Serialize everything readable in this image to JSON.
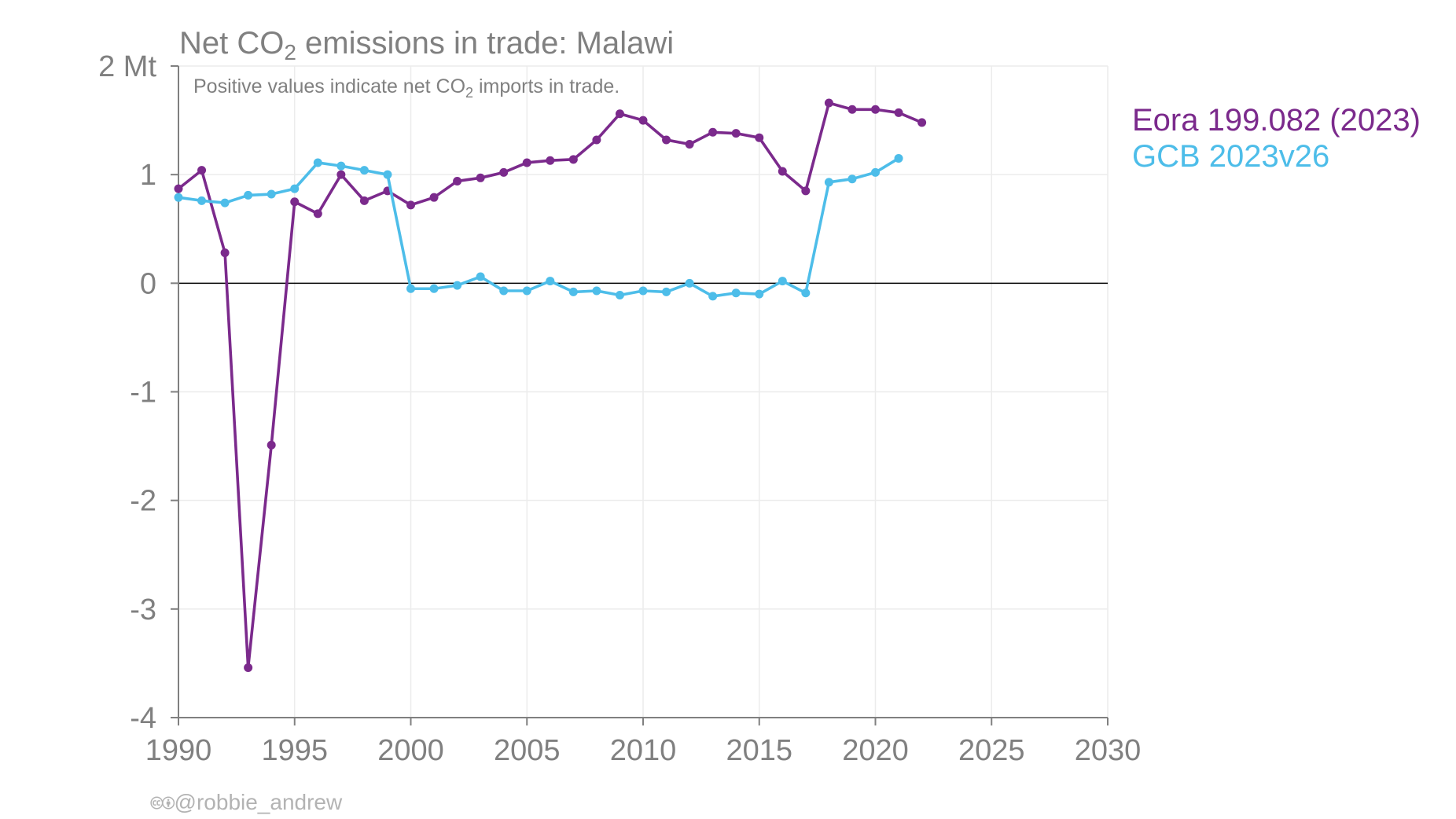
{
  "title": {
    "prefix": "Net CO",
    "sub": "2",
    "suffix": " emissions in trade: Malawi"
  },
  "subtitle": {
    "prefix": "Positive values indicate net CO",
    "sub": "2",
    "suffix": " imports in trade."
  },
  "credit": {
    "icons": "🅭🅯",
    "handle": "@robbie_andrew"
  },
  "colors": {
    "eora": "#7b2a8c",
    "gcb": "#4dbde9",
    "axis": "#808080",
    "grid": "#ececec",
    "zero": "#000000"
  },
  "chart_data": {
    "type": "line",
    "title": "Net CO2 emissions in trade: Malawi",
    "subtitle": "Positive values indicate net CO2 imports in trade.",
    "xlim": [
      1990,
      2030
    ],
    "ylim": [
      -4,
      2
    ],
    "x_ticks": [
      1990,
      1995,
      2000,
      2005,
      2010,
      2015,
      2020,
      2025,
      2030
    ],
    "y_ticks": [
      {
        "value": 2,
        "label": "2 Mt"
      },
      {
        "value": 1,
        "label": "1"
      },
      {
        "value": 0,
        "label": "0"
      },
      {
        "value": -1,
        "label": "-1"
      },
      {
        "value": -2,
        "label": "-2"
      },
      {
        "value": -3,
        "label": "-3"
      },
      {
        "value": -4,
        "label": "-4"
      }
    ],
    "grid": true,
    "legend_position": "right",
    "series": [
      {
        "name": "Eora 199.082 (2023)",
        "color": "#7b2a8c",
        "x": [
          1990,
          1991,
          1992,
          1993,
          1994,
          1995,
          1996,
          1997,
          1998,
          1999,
          2000,
          2001,
          2002,
          2003,
          2004,
          2005,
          2006,
          2007,
          2008,
          2009,
          2010,
          2011,
          2012,
          2013,
          2014,
          2015,
          2016,
          2017,
          2018,
          2019,
          2020,
          2021,
          2022
        ],
        "values": [
          0.87,
          1.04,
          0.28,
          -3.54,
          -1.49,
          0.75,
          0.64,
          1.0,
          0.76,
          0.85,
          0.72,
          0.79,
          0.94,
          0.97,
          1.02,
          1.11,
          1.13,
          1.14,
          1.32,
          1.56,
          1.5,
          1.32,
          1.28,
          1.39,
          1.38,
          1.34,
          1.03,
          0.85,
          1.66,
          1.6,
          1.6,
          1.57,
          1.48
        ]
      },
      {
        "name": "GCB 2023v26",
        "color": "#4dbde9",
        "x": [
          1990,
          1991,
          1992,
          1993,
          1994,
          1995,
          1996,
          1997,
          1998,
          1999,
          2000,
          2001,
          2002,
          2003,
          2004,
          2005,
          2006,
          2007,
          2008,
          2009,
          2010,
          2011,
          2012,
          2013,
          2014,
          2015,
          2016,
          2017,
          2018,
          2019,
          2020,
          2021
        ],
        "values": [
          0.79,
          0.76,
          0.74,
          0.81,
          0.82,
          0.87,
          1.11,
          1.08,
          1.04,
          1.0,
          -0.05,
          -0.05,
          -0.02,
          0.06,
          -0.07,
          -0.07,
          0.02,
          -0.08,
          -0.07,
          -0.11,
          -0.07,
          -0.08,
          0.0,
          -0.12,
          -0.09,
          -0.1,
          0.02,
          -0.09,
          0.93,
          0.96,
          1.02,
          1.15
        ]
      }
    ]
  }
}
